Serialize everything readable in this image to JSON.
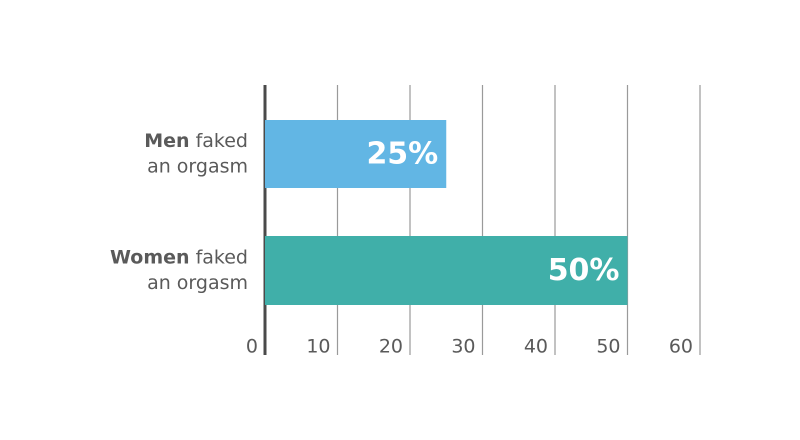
{
  "chart_data": {
    "type": "bar",
    "orientation": "horizontal",
    "categories": [
      {
        "bold": "Men",
        "rest": "faked",
        "line2": "an orgasm"
      },
      {
        "bold": "Women",
        "rest": "faked",
        "line2": "an orgasm"
      }
    ],
    "values": [
      25,
      50
    ],
    "value_labels": [
      "25%",
      "50%"
    ],
    "colors": [
      "#62b6e4",
      "#40afa9"
    ],
    "xlim": [
      0,
      60
    ],
    "xticks": [
      0,
      10,
      20,
      30,
      40,
      50,
      60
    ],
    "grid": true
  }
}
